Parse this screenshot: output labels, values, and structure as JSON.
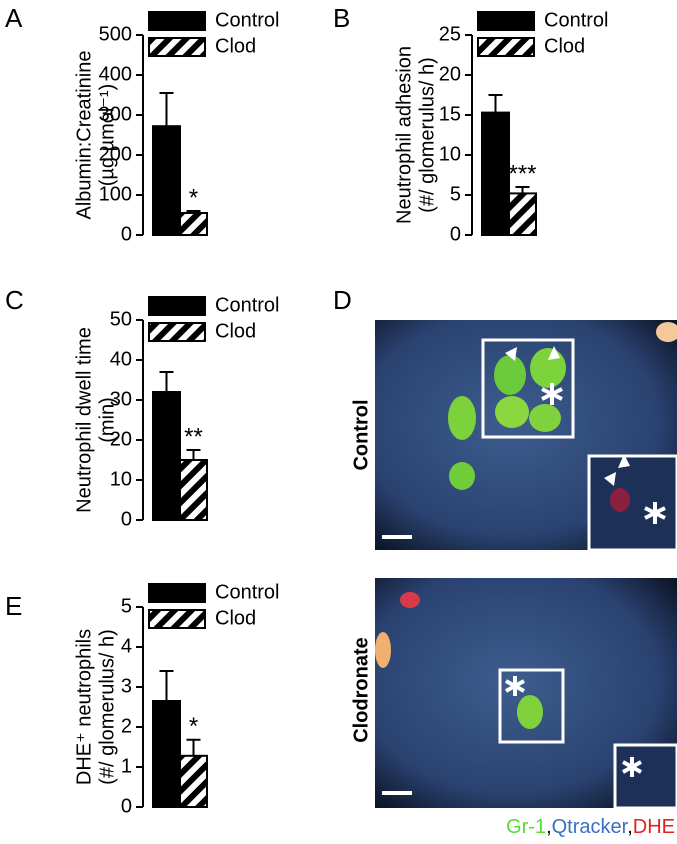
{
  "chart_data": [
    {
      "type": "bar",
      "label": "A",
      "ylabel": [
        "Albumin:Creatinine",
        "(µg µmol⁻¹)"
      ],
      "ylim": [
        0,
        500
      ],
      "yticks": [
        0,
        100,
        200,
        300,
        400,
        500
      ],
      "series": [
        {
          "name": "Control",
          "color": "#000000",
          "values": [
            272
          ],
          "errors": [
            83
          ]
        },
        {
          "name": "Clod",
          "color": "#000000",
          "hatch": true,
          "values": [
            55
          ],
          "errors": [
            5
          ],
          "annotation": "*"
        }
      ]
    },
    {
      "type": "bar",
      "label": "B",
      "ylabel": [
        "Neutrophil adhesion",
        "(#/ glomerulus/ h)"
      ],
      "ylim": [
        0,
        25
      ],
      "yticks": [
        0,
        5,
        10,
        15,
        20,
        25
      ],
      "series": [
        {
          "name": "Control",
          "color": "#000000",
          "values": [
            15.3
          ],
          "errors": [
            2.2
          ]
        },
        {
          "name": "Clod",
          "color": "#000000",
          "hatch": true,
          "values": [
            5.2
          ],
          "errors": [
            0.8
          ],
          "annotation": "***"
        }
      ]
    },
    {
      "type": "bar",
      "label": "C",
      "ylabel": [
        "Neutrophil dwell time",
        "(min)"
      ],
      "ylim": [
        0,
        50
      ],
      "yticks": [
        0,
        10,
        20,
        30,
        40,
        50
      ],
      "series": [
        {
          "name": "Control",
          "color": "#000000",
          "values": [
            32
          ],
          "errors": [
            5
          ]
        },
        {
          "name": "Clod",
          "color": "#000000",
          "hatch": true,
          "values": [
            15
          ],
          "errors": [
            2.5
          ],
          "annotation": "**"
        }
      ]
    },
    {
      "type": "bar",
      "label": "E",
      "ylabel": [
        "DHE⁺ neutrophils",
        "(#/ glomerulus/ h)"
      ],
      "ylim": [
        0,
        5
      ],
      "yticks": [
        0,
        1,
        2,
        3,
        4,
        5
      ],
      "series": [
        {
          "name": "Control",
          "color": "#000000",
          "values": [
            2.65
          ],
          "errors": [
            0.75
          ]
        },
        {
          "name": "Clod",
          "color": "#000000",
          "hatch": true,
          "values": [
            1.28
          ],
          "errors": [
            0.4
          ],
          "annotation": "*"
        }
      ]
    }
  ],
  "panel_d": {
    "label": "D",
    "images": [
      {
        "label": "Control"
      },
      {
        "label": "Clodronate"
      }
    ],
    "separator": ",",
    "stain_legend": [
      {
        "text": "Gr-1",
        "color": "#55dd33"
      },
      {
        "text": "Qtracker",
        "color": "#3b6fc4"
      },
      {
        "text": "DHE",
        "color": "#e02222"
      }
    ]
  }
}
